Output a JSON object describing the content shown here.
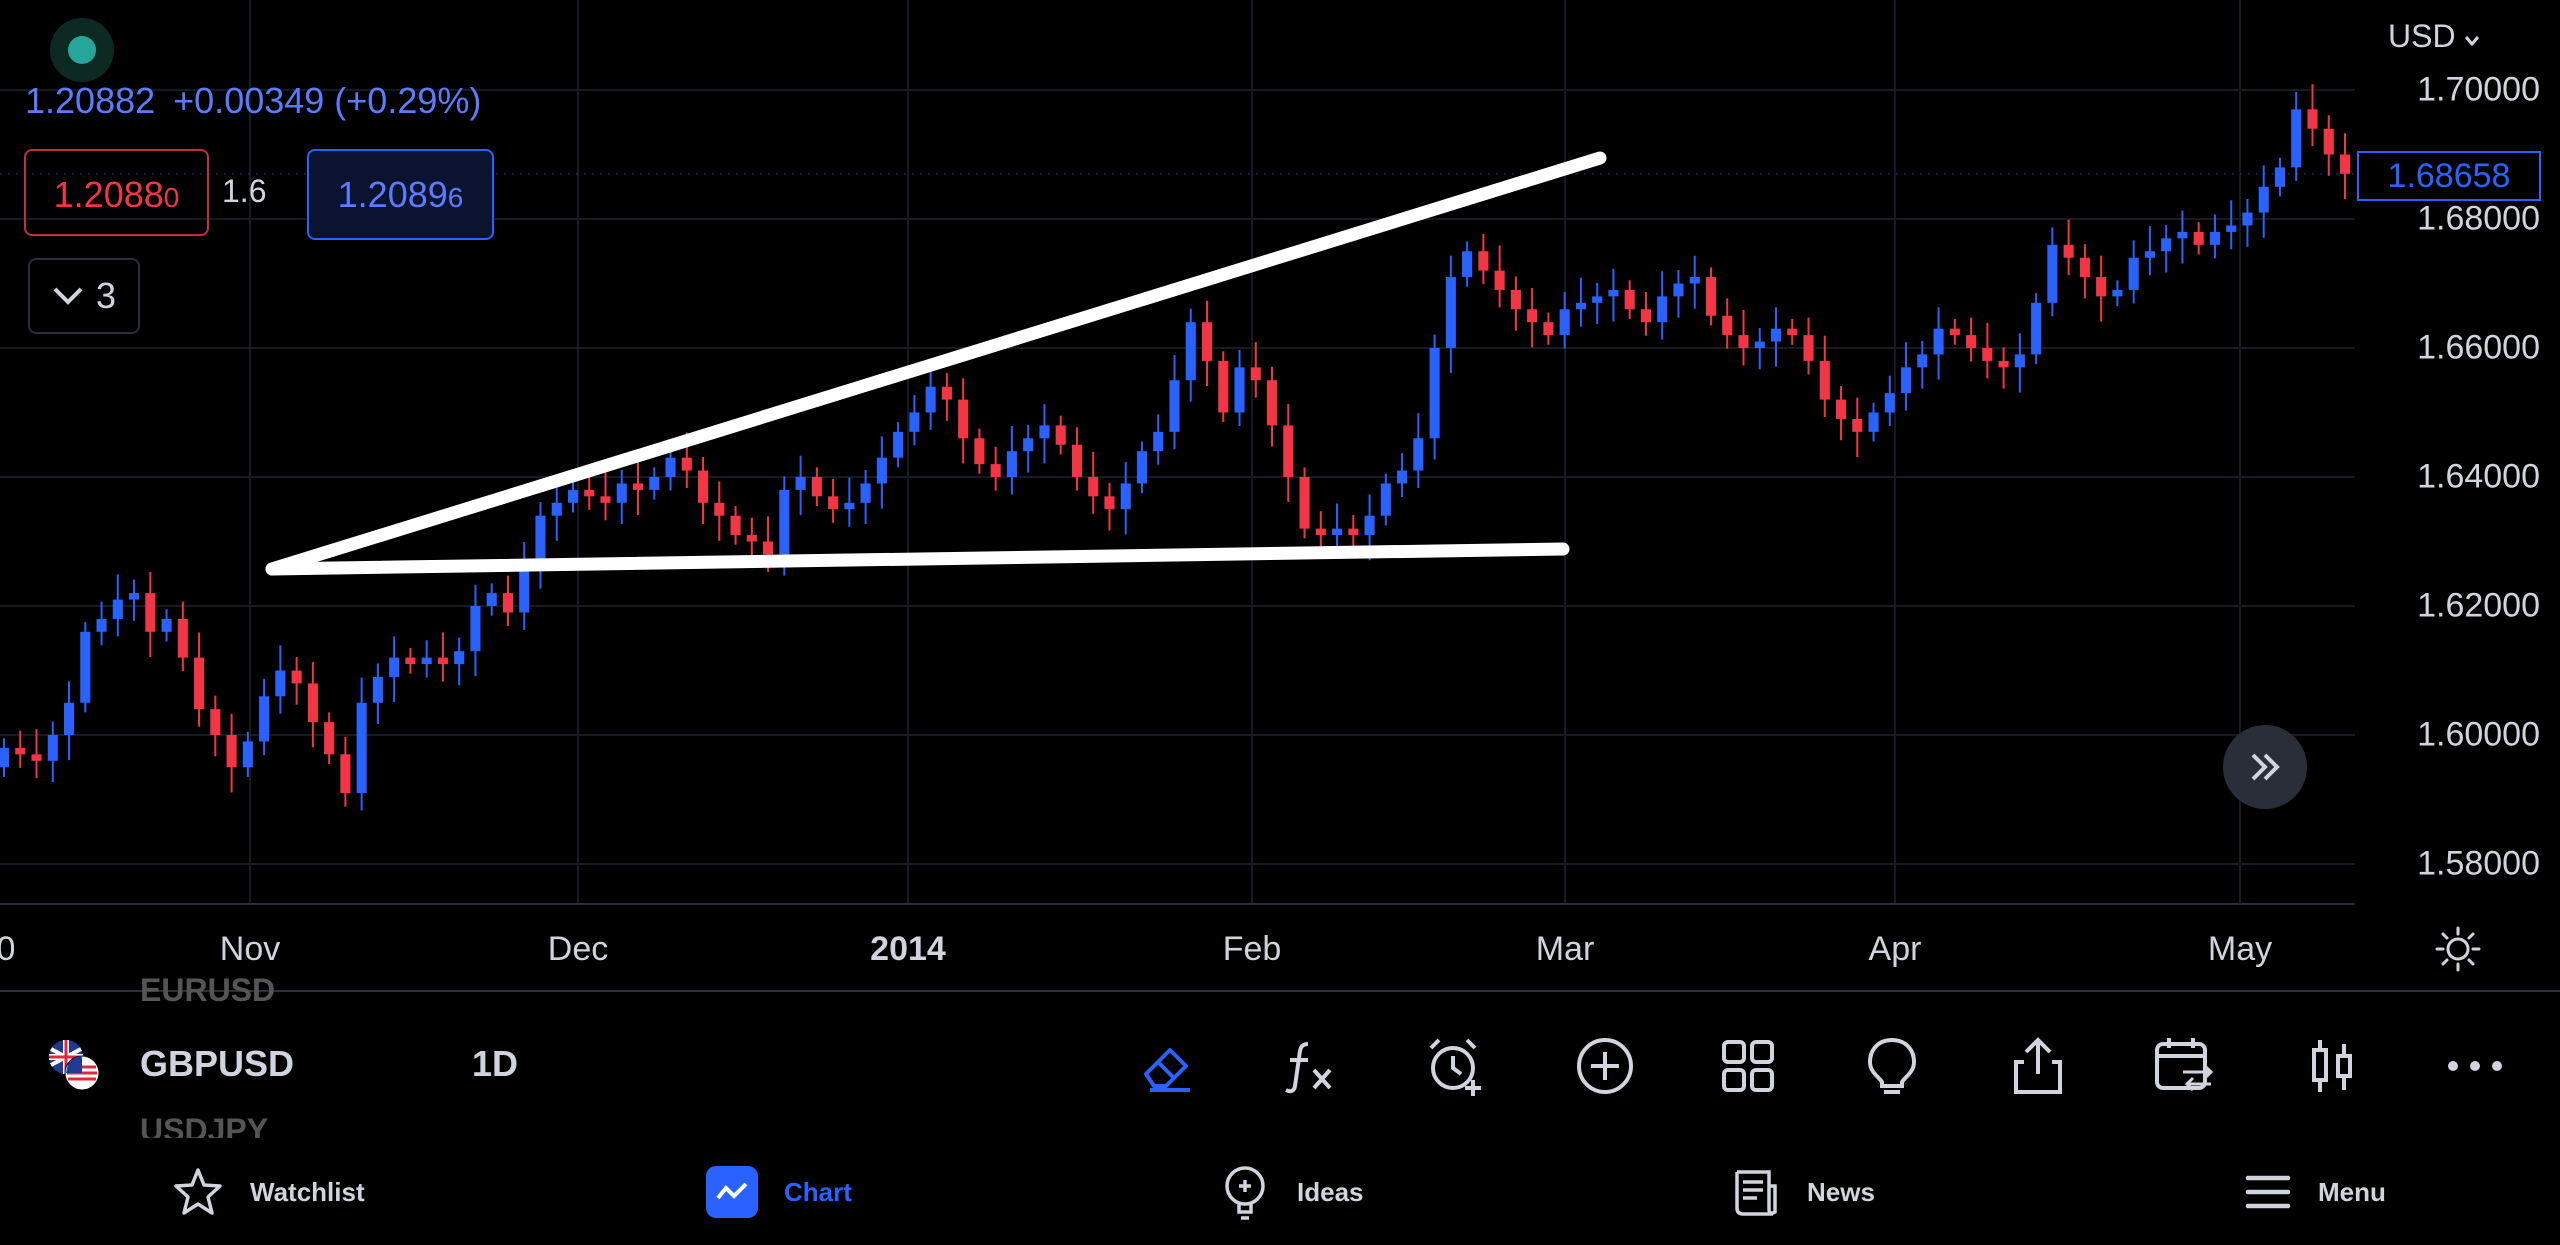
{
  "header": {
    "last_price": "1.20882",
    "change": "+0.00349 (+0.29%)",
    "bid": "1.2088",
    "bid_sup": "0",
    "spread": "1.6",
    "ask": "1.2089",
    "ask_sup": "6",
    "indicators_count": "3"
  },
  "price_axis": {
    "currency": "USD",
    "labels": [
      "1.70000",
      "1.68000",
      "1.66000",
      "1.64000",
      "1.62000",
      "1.60000",
      "1.58000"
    ],
    "current_price": "1.68658"
  },
  "date_axis": {
    "labels": [
      "0",
      "Nov",
      "Dec",
      "2014",
      "Feb",
      "Mar",
      "Apr",
      "May"
    ]
  },
  "symbol_bar": {
    "symbol": "GBPUSD",
    "interval": "1D",
    "above_symbol": "EURUSD",
    "below_symbol": "USDJPY"
  },
  "bottom_nav": {
    "watchlist": "Watchlist",
    "chart": "Chart",
    "ideas": "Ideas",
    "news": "News",
    "menu": "Menu"
  },
  "colors": {
    "up": "#2962ff",
    "down": "#f23645",
    "accent": "#2962ff",
    "drawing": "#ffffff",
    "background": "#000000"
  },
  "chart_data": {
    "type": "candlestick",
    "symbol": "GBPUSD",
    "interval": "1D",
    "x_range": [
      "2013-10-25",
      "2014-05-09"
    ],
    "ylim": [
      1.575,
      1.705
    ],
    "grid": true,
    "values_close_approx": [
      1.598,
      1.597,
      1.596,
      1.6,
      1.605,
      1.616,
      1.618,
      1.621,
      1.622,
      1.616,
      1.618,
      1.612,
      1.604,
      1.6,
      1.595,
      1.599,
      1.606,
      1.61,
      1.608,
      1.602,
      1.597,
      1.591,
      1.605,
      1.609,
      1.612,
      1.611,
      1.612,
      1.611,
      1.613,
      1.62,
      1.622,
      1.619,
      1.626,
      1.634,
      1.636,
      1.638,
      1.637,
      1.636,
      1.639,
      1.638,
      1.64,
      1.643,
      1.641,
      1.636,
      1.634,
      1.631,
      1.63,
      1.628,
      1.638,
      1.64,
      1.637,
      1.635,
      1.636,
      1.639,
      1.643,
      1.647,
      1.65,
      1.654,
      1.652,
      1.646,
      1.642,
      1.64,
      1.644,
      1.646,
      1.648,
      1.645,
      1.64,
      1.637,
      1.635,
      1.639,
      1.644,
      1.647,
      1.655,
      1.664,
      1.658,
      1.65,
      1.657,
      1.655,
      1.648,
      1.64,
      1.632,
      1.631,
      1.632,
      1.631,
      1.634,
      1.639,
      1.641,
      1.646,
      1.66,
      1.671,
      1.675,
      1.672,
      1.669,
      1.666,
      1.664,
      1.662,
      1.666,
      1.667,
      1.668,
      1.669,
      1.666,
      1.664,
      1.668,
      1.67,
      1.671,
      1.665,
      1.662,
      1.66,
      1.661,
      1.663,
      1.662,
      1.658,
      1.652,
      1.649,
      1.647,
      1.65,
      1.653,
      1.657,
      1.659,
      1.663,
      1.662,
      1.66,
      1.658,
      1.657,
      1.659,
      1.667,
      1.676,
      1.674,
      1.671,
      1.668,
      1.669,
      1.674,
      1.675,
      1.677,
      1.678,
      1.676,
      1.678,
      1.679,
      1.681,
      1.685,
      1.688,
      1.697,
      1.694,
      1.69,
      1.687
    ],
    "drawings": [
      {
        "type": "trend-line",
        "label": "upper-trend-line"
      },
      {
        "type": "trend-line",
        "label": "lower-support-line"
      }
    ]
  }
}
